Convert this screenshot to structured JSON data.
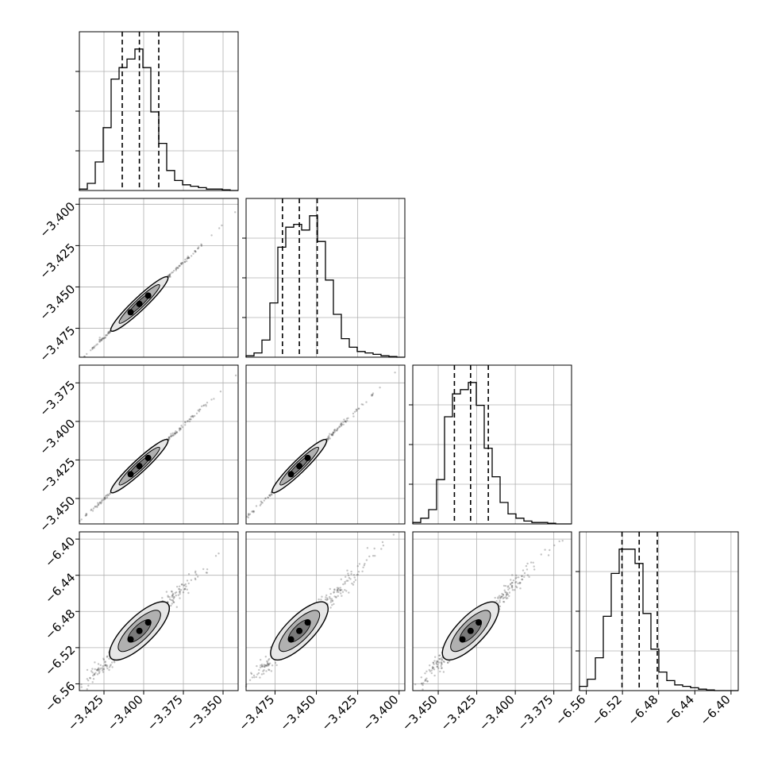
{
  "chart_data": {
    "type": "corner",
    "n_params": 4,
    "grid": true,
    "colors": {
      "line": "#000000",
      "grid": "#b0b0b0",
      "fill_outer": "#e6e6e6",
      "fill_inner": "#7a7a7a",
      "core": "#000000"
    },
    "params": [
      {
        "range": [
          -3.4405,
          -3.3405
        ],
        "ticks": [
          -3.425,
          -3.4,
          -3.375,
          -3.35
        ],
        "tick_labels": [
          "−3.425",
          "−3.400",
          "−3.375",
          "−3.350"
        ],
        "quantiles": [
          -3.4135,
          -3.4027,
          -3.3905
        ]
      },
      {
        "range": [
          -3.4925,
          -3.3965
        ],
        "ticks": [
          -3.475,
          -3.45,
          -3.425,
          -3.4
        ],
        "tick_labels": [
          "−3.475",
          "−3.450",
          "−3.425",
          "−3.400"
        ],
        "quantiles": [
          -3.4705,
          -3.4603,
          -3.4495
        ]
      },
      {
        "range": [
          -3.4665,
          -3.3635
        ],
        "ticks": [
          -3.45,
          -3.425,
          -3.4,
          -3.375
        ],
        "tick_labels": [
          "−3.450",
          "−3.425",
          "−3.400",
          "−3.375"
        ],
        "quantiles": [
          -3.4395,
          -3.429,
          -3.4175
        ]
      },
      {
        "range": [
          -6.5675,
          -6.392
        ],
        "ticks": [
          -6.56,
          -6.52,
          -6.48,
          -6.44,
          -6.4
        ],
        "tick_labels": [
          "−6.56",
          "−6.52",
          "−6.48",
          "−6.44",
          "−6.40"
        ],
        "quantiles": [
          -6.5205,
          -6.5015,
          -6.4815
        ]
      }
    ],
    "histograms": [
      [
        0.01,
        0.05,
        0.2,
        0.44,
        0.78,
        0.86,
        0.92,
        0.99,
        0.86,
        0.55,
        0.33,
        0.14,
        0.07,
        0.04,
        0.03,
        0.02,
        0.01,
        0.01,
        0.005,
        0.0
      ],
      [
        0.01,
        0.03,
        0.12,
        0.38,
        0.77,
        0.91,
        0.93,
        0.89,
        0.99,
        0.81,
        0.54,
        0.3,
        0.13,
        0.07,
        0.04,
        0.03,
        0.02,
        0.01,
        0.005,
        0.0
      ],
      [
        0.01,
        0.04,
        0.1,
        0.31,
        0.75,
        0.91,
        0.94,
        0.99,
        0.83,
        0.53,
        0.33,
        0.15,
        0.07,
        0.04,
        0.02,
        0.01,
        0.01,
        0.005,
        0.0,
        0.0
      ],
      [
        0.03,
        0.08,
        0.23,
        0.52,
        0.82,
        0.99,
        0.99,
        0.89,
        0.54,
        0.29,
        0.13,
        0.07,
        0.04,
        0.03,
        0.02,
        0.01,
        0.005,
        0.0,
        0.0,
        0.0
      ]
    ],
    "scatter_spread": [
      0.00035,
      0.00035,
      0.00035,
      0.0045
    ]
  }
}
